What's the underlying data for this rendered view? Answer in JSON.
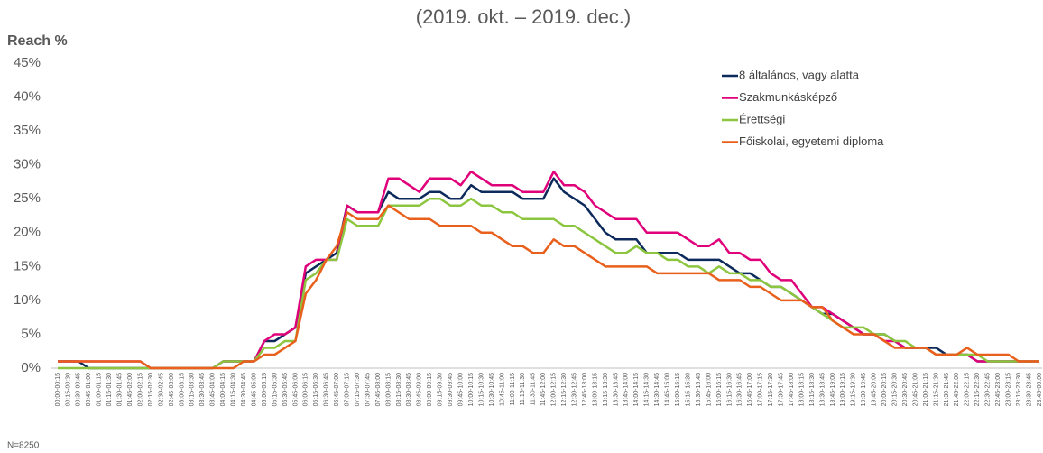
{
  "chart_data": {
    "type": "line",
    "subtitle": "(2019. okt. – 2019. dec.)",
    "y_label": "Reach %",
    "footnote": "N=8250",
    "categories": [
      "00:00-00:15",
      "00:15-00:30",
      "00:30-00:45",
      "00:45-01:00",
      "01:00-01:15",
      "01:15-01:30",
      "01:30-01:45",
      "01:45-02:00",
      "02:00-02:15",
      "02:15-02:30",
      "02:30-02:45",
      "02:45-03:00",
      "03:00-03:15",
      "03:15-03:30",
      "03:30-03:45",
      "03:45-04:00",
      "04:00-04:15",
      "04:15-04:30",
      "04:30-04:45",
      "04:45-05:00",
      "05:00-05:15",
      "05:15-05:30",
      "05:30-05:45",
      "05:45-06:00",
      "06:00-06:15",
      "06:15-06:30",
      "06:30-06:45",
      "06:45-07:00",
      "07:00-07:15",
      "07:15-07:30",
      "07:30-07:45",
      "07:45-08:00",
      "08:00-08:15",
      "08:15-08:30",
      "08:30-08:45",
      "08:45-09:00",
      "09:00-09:15",
      "09:15-09:30",
      "09:30-09:45",
      "09:45-10:00",
      "10:00-10:15",
      "10:15-10:30",
      "10:30-10:45",
      "10:45-11:00",
      "11:00-11:15",
      "11:15-11:30",
      "11:30-11:45",
      "11:45-12:00",
      "12:00-12:15",
      "12:15-12:30",
      "12:30-12:45",
      "12:45-13:00",
      "13:00-13:15",
      "13:15-13:30",
      "13:30-13:45",
      "13:45-14:00",
      "14:00-14:15",
      "14:15-14:30",
      "14:30-14:45",
      "14:45-15:00",
      "15:00-15:15",
      "15:15-15:30",
      "15:30-15:45",
      "15:45-16:00",
      "16:00-16:15",
      "16:15-16:30",
      "16:30-16:45",
      "16:45-17:00",
      "17:00-17:15",
      "17:15-17:30",
      "17:30-17:45",
      "17:45-18:00",
      "18:00-18:15",
      "18:15-18:30",
      "18:30-18:45",
      "18:45-19:00",
      "19:00-19:15",
      "19:15-19:30",
      "19:30-19:45",
      "19:45-20:00",
      "20:00-20:15",
      "20:15-20:30",
      "20:30-20:45",
      "20:45-21:00",
      "21:00-21:15",
      "21:15-21:30",
      "21:30-21:45",
      "21:45-22:00",
      "22:00-22:15",
      "22:15-22:30",
      "22:30-22:45",
      "22:45-23:00",
      "23:00-23:15",
      "23:15-23:30",
      "23:30-23:45",
      "23:45-00:00"
    ],
    "series": [
      {
        "name": "8 általános, vagy alatta",
        "color": "#0d2a5c",
        "values": [
          1,
          1,
          1,
          0,
          0,
          0,
          0,
          0,
          0,
          0,
          0,
          0,
          0,
          0,
          0,
          0,
          1,
          1,
          1,
          1,
          4,
          4,
          5,
          6,
          14,
          15,
          16,
          17,
          24,
          23,
          23,
          23,
          26,
          25,
          25,
          25,
          26,
          26,
          25,
          25,
          27,
          26,
          26,
          26,
          26,
          25,
          25,
          25,
          28,
          26,
          25,
          24,
          22,
          20,
          19,
          19,
          19,
          17,
          17,
          17,
          17,
          16,
          16,
          16,
          16,
          15,
          14,
          14,
          13,
          12,
          12,
          11,
          10,
          9,
          8,
          8,
          7,
          6,
          5,
          5,
          5,
          4,
          3,
          3,
          3,
          3,
          2,
          2,
          2,
          1,
          1,
          1,
          1,
          1,
          1,
          1
        ]
      },
      {
        "name": "Szakmunkásképző",
        "color": "#e0007a",
        "values": [
          1,
          1,
          1,
          1,
          1,
          1,
          1,
          1,
          1,
          0,
          0,
          0,
          0,
          0,
          0,
          0,
          1,
          1,
          1,
          1,
          4,
          5,
          5,
          6,
          15,
          16,
          16,
          16,
          24,
          23,
          23,
          23,
          28,
          28,
          27,
          26,
          28,
          28,
          28,
          27,
          29,
          28,
          27,
          27,
          27,
          26,
          26,
          26,
          29,
          27,
          27,
          26,
          24,
          23,
          22,
          22,
          22,
          20,
          20,
          20,
          20,
          19,
          18,
          18,
          19,
          17,
          17,
          16,
          16,
          14,
          13,
          13,
          11,
          9,
          9,
          8,
          7,
          6,
          5,
          5,
          4,
          4,
          3,
          3,
          3,
          2,
          2,
          2,
          2,
          1,
          1,
          1,
          1,
          1,
          1,
          1
        ]
      },
      {
        "name": "Érettségi",
        "color": "#8cc63f",
        "values": [
          0,
          0,
          0,
          0,
          0,
          0,
          0,
          0,
          0,
          0,
          0,
          0,
          0,
          0,
          0,
          0,
          1,
          1,
          1,
          1,
          3,
          3,
          4,
          4,
          13,
          14,
          16,
          16,
          22,
          21,
          21,
          21,
          24,
          24,
          24,
          24,
          25,
          25,
          24,
          24,
          25,
          24,
          24,
          23,
          23,
          22,
          22,
          22,
          22,
          21,
          21,
          20,
          19,
          18,
          17,
          17,
          18,
          17,
          17,
          16,
          16,
          15,
          15,
          14,
          15,
          14,
          14,
          13,
          13,
          12,
          12,
          11,
          10,
          9,
          8,
          7,
          6,
          6,
          6,
          5,
          5,
          4,
          4,
          3,
          3,
          2,
          2,
          2,
          2,
          2,
          1,
          1,
          1,
          1,
          1,
          1
        ]
      },
      {
        "name": "Főiskolai, egyetemi diploma",
        "color": "#e8601c",
        "values": [
          1,
          1,
          1,
          1,
          1,
          1,
          1,
          1,
          1,
          0,
          0,
          0,
          0,
          0,
          0,
          0,
          0,
          0,
          1,
          1,
          2,
          2,
          3,
          4,
          11,
          13,
          16,
          18,
          23,
          22,
          22,
          22,
          24,
          23,
          22,
          22,
          22,
          21,
          21,
          21,
          21,
          20,
          20,
          19,
          18,
          18,
          17,
          17,
          19,
          18,
          18,
          17,
          16,
          15,
          15,
          15,
          15,
          15,
          14,
          14,
          14,
          14,
          14,
          14,
          13,
          13,
          13,
          12,
          12,
          11,
          10,
          10,
          10,
          9,
          9,
          7,
          6,
          5,
          5,
          5,
          4,
          3,
          3,
          3,
          3,
          2,
          2,
          2,
          3,
          2,
          2,
          2,
          2,
          1,
          1,
          1
        ]
      }
    ],
    "ylim": [
      0,
      45
    ],
    "yticks": [
      {
        "value": 0,
        "label": "0%"
      },
      {
        "value": 5,
        "label": "5%"
      },
      {
        "value": 10,
        "label": "10%"
      },
      {
        "value": 15,
        "label": "15%"
      },
      {
        "value": 20,
        "label": "20%"
      },
      {
        "value": 25,
        "label": "25%"
      },
      {
        "value": 30,
        "label": "30%"
      },
      {
        "value": 35,
        "label": "35%"
      },
      {
        "value": 40,
        "label": "40%"
      },
      {
        "value": 45,
        "label": "45%"
      }
    ],
    "grid": false,
    "legend": "top-right"
  }
}
